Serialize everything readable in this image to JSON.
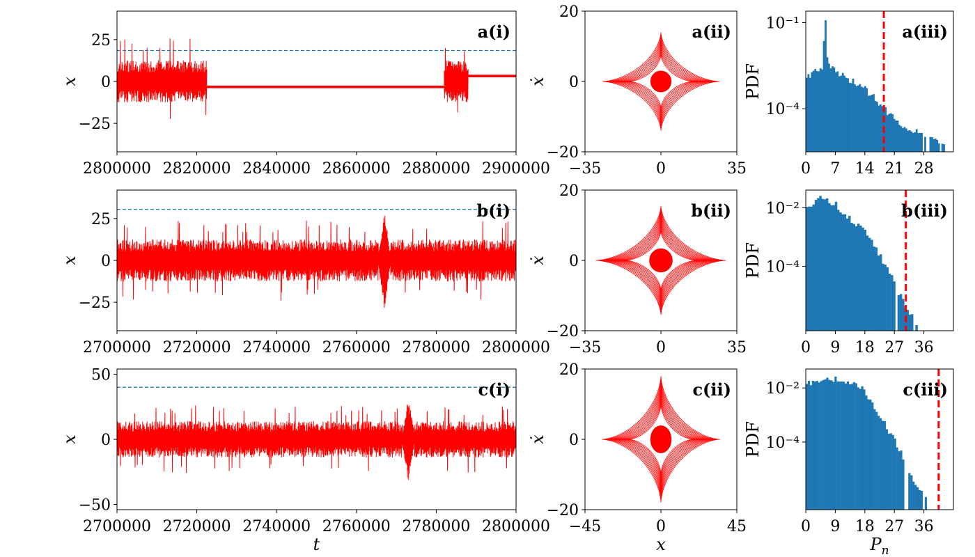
{
  "colors": {
    "signal": "#ff0000",
    "threshold": "#1f77b4",
    "histogram": "#1f77b4",
    "limit": "#ff0000",
    "frame": "#000000"
  },
  "chart_data": [
    {
      "id": "a_i",
      "type": "line",
      "label": "a(i)",
      "xlabel": "",
      "ylabel": "x",
      "xlim": [
        2800000,
        2900000
      ],
      "ylim": [
        -42,
        42
      ],
      "xticks": [
        "2800000",
        "2820000",
        "2840000",
        "2860000",
        "2880000",
        "2900000"
      ],
      "yticks": [
        "25",
        "0",
        "−25"
      ],
      "ytick_values": [
        25,
        0,
        -25
      ],
      "threshold": 18.5,
      "segments": [
        {
          "x": [
            2800000,
            2822500
          ],
          "kind": "chaotic",
          "amp": 9,
          "peak": 26
        },
        {
          "x": [
            2822500,
            2882000
          ],
          "kind": "band",
          "lo": -4,
          "hi": -2.5
        },
        {
          "x": [
            2882000,
            2888000
          ],
          "kind": "chaotic",
          "amp": 9,
          "peak": 20
        },
        {
          "x": [
            2888000,
            2900000
          ],
          "kind": "band",
          "lo": 2.5,
          "hi": 4
        }
      ]
    },
    {
      "id": "a_ii",
      "type": "line",
      "label": "a(ii)",
      "xlabel": "",
      "ylabel": "ẋ",
      "xlim": [
        -35,
        35
      ],
      "ylim": [
        -20,
        20
      ],
      "xticks": [
        "−35",
        "0",
        "35"
      ],
      "yticks": [
        "20",
        "0",
        "−20"
      ],
      "ytick_values": [
        20,
        0,
        -20
      ],
      "astroid": {
        "xmax": 27,
        "ymax": 14,
        "loops": 10
      }
    },
    {
      "id": "a_iii",
      "type": "bar",
      "label": "a(iii)",
      "xlabel": "",
      "ylabel": "PDF",
      "xlim": [
        0,
        35
      ],
      "log_ylim": [
        -5.5,
        -0.6
      ],
      "xticks": [
        "0",
        "7",
        "14",
        "21",
        "28"
      ],
      "xtick_values": [
        0,
        7,
        14,
        21,
        28
      ],
      "yticks": [
        "10⁻¹",
        "10⁻⁴"
      ],
      "ytick_values": [
        -1,
        -4
      ],
      "threshold": 18.5,
      "bins": 86,
      "log_pdf_profile": [
        [
          0,
          -2.9
        ],
        [
          4,
          -2.5
        ],
        [
          4.6,
          -0.8
        ],
        [
          5.2,
          -2.5
        ],
        [
          8,
          -2.8
        ],
        [
          14,
          -3.3
        ],
        [
          18,
          -3.9
        ],
        [
          22,
          -4.5
        ],
        [
          28,
          -4.9
        ],
        [
          33,
          -5.3
        ]
      ]
    },
    {
      "id": "b_i",
      "type": "line",
      "label": "b(i)",
      "xlabel": "",
      "ylabel": "x",
      "xlim": [
        2700000,
        2800000
      ],
      "ylim": [
        -42,
        42
      ],
      "xticks": [
        "2700000",
        "2720000",
        "2740000",
        "2760000",
        "2780000",
        "2800000"
      ],
      "yticks": [
        "25",
        "0",
        "−25"
      ],
      "ytick_values": [
        25,
        0,
        -25
      ],
      "threshold": 30.5,
      "segments": [
        {
          "x": [
            2700000,
            2800000
          ],
          "kind": "chaotic",
          "amp": 9,
          "peak": 24,
          "burst_at": 2767000,
          "burst_peak": 31
        }
      ]
    },
    {
      "id": "b_ii",
      "type": "line",
      "label": "b(ii)",
      "xlabel": "",
      "ylabel": "ẋ",
      "xlim": [
        -35,
        35
      ],
      "ylim": [
        -20,
        20
      ],
      "xticks": [
        "−35",
        "0",
        "35"
      ],
      "yticks": [
        "20",
        "0",
        "−20"
      ],
      "ytick_values": [
        20,
        0,
        -20
      ],
      "astroid": {
        "xmax": 30,
        "ymax": 15.5,
        "loops": 12
      }
    },
    {
      "id": "b_iii",
      "type": "bar",
      "label": "b(iii)",
      "xlabel": "",
      "ylabel": "PDF",
      "xlim": [
        0,
        45
      ],
      "log_ylim": [
        -6.2,
        -1.4
      ],
      "xticks": [
        "0",
        "9",
        "18",
        "27",
        "36"
      ],
      "xtick_values": [
        0,
        9,
        18,
        27,
        36
      ],
      "yticks": [
        "10⁻²",
        "10⁻⁴"
      ],
      "ytick_values": [
        -2,
        -4
      ],
      "threshold": 30.5,
      "bins": 66,
      "log_pdf_profile": [
        [
          0,
          -2.0
        ],
        [
          5,
          -1.6
        ],
        [
          9,
          -1.9
        ],
        [
          14,
          -2.4
        ],
        [
          18,
          -2.8
        ],
        [
          22,
          -3.5
        ],
        [
          26,
          -4.3
        ],
        [
          30,
          -5.3
        ],
        [
          34,
          -6.0
        ]
      ]
    },
    {
      "id": "c_i",
      "type": "line",
      "label": "c(i)",
      "xlabel": "t",
      "ylabel": "x",
      "xlim": [
        2700000,
        2800000
      ],
      "ylim": [
        -54,
        54
      ],
      "xticks": [
        "2700000",
        "2720000",
        "2740000",
        "2760000",
        "2780000",
        "2800000"
      ],
      "yticks": [
        "50",
        "0",
        "−50"
      ],
      "ytick_values": [
        50,
        0,
        -50
      ],
      "threshold": 40,
      "segments": [
        {
          "x": [
            2700000,
            2800000
          ],
          "kind": "chaotic",
          "amp": 10,
          "peak": 26,
          "burst_at": 2773000,
          "burst_peak": 35
        }
      ]
    },
    {
      "id": "c_ii",
      "type": "line",
      "label": "c(ii)",
      "xlabel": "x",
      "ylabel": "ẋ",
      "xlim": [
        -45,
        45
      ],
      "ylim": [
        -20,
        20
      ],
      "xticks": [
        "−45",
        "0",
        "45"
      ],
      "yticks": [
        "20",
        "0",
        "−20"
      ],
      "ytick_values": [
        20,
        0,
        -20
      ],
      "astroid": {
        "xmax": 35,
        "ymax": 18,
        "loops": 12
      }
    },
    {
      "id": "c_iii",
      "type": "bar",
      "label": "c(iii)",
      "xlabel": "P",
      "xlabel_sub": "n",
      "ylabel": "PDF",
      "xlim": [
        0,
        45
      ],
      "log_ylim": [
        -6.5,
        -1.3
      ],
      "xticks": [
        "0",
        "9",
        "18",
        "27",
        "36"
      ],
      "xtick_values": [
        0,
        9,
        18,
        27,
        36
      ],
      "yticks": [
        "10⁻²",
        "10⁻⁴"
      ],
      "ytick_values": [
        -2,
        -4
      ],
      "threshold": 40.5,
      "bins": 72,
      "log_pdf_profile": [
        [
          0,
          -1.9
        ],
        [
          6,
          -1.6
        ],
        [
          12,
          -1.75
        ],
        [
          17,
          -2.0
        ],
        [
          21,
          -2.7
        ],
        [
          25,
          -3.5
        ],
        [
          29,
          -4.4
        ],
        [
          33,
          -5.4
        ],
        [
          37,
          -6.2
        ]
      ]
    }
  ]
}
